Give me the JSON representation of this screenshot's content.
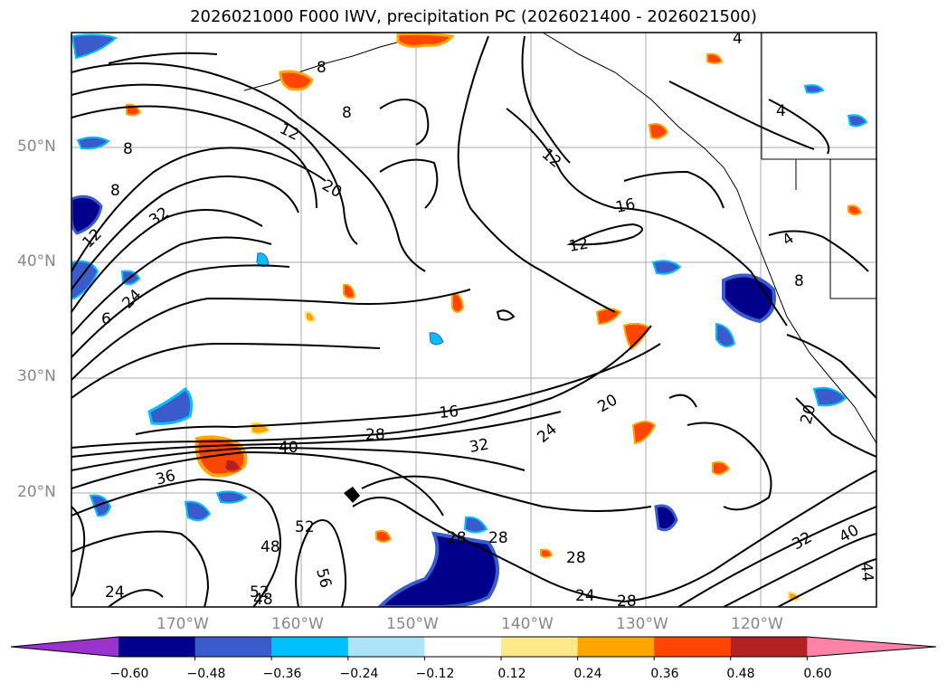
{
  "title": "2026021000 F000 IWV, precipitation PC (2026021400 - 2026021500)",
  "lat_labels": [
    "50°N",
    "40°N",
    "30°N",
    "20°N"
  ],
  "lon_labels": [
    "170°W",
    "160°W",
    "150°W",
    "140°W",
    "130°W",
    "120°W"
  ],
  "contour_labels": [
    "12",
    "8",
    "8",
    "8",
    "12",
    "8",
    "32",
    "20",
    "24",
    "6",
    "12",
    "16",
    "12",
    "4",
    "4",
    "4",
    "8",
    "16",
    "20",
    "28",
    "40",
    "32",
    "24",
    "36",
    "52",
    "48",
    "56",
    "28",
    "28",
    "28",
    "24",
    "28",
    "20",
    "40",
    "52",
    "44",
    "24",
    "48",
    "32"
  ],
  "colorbar": {
    "ticks": [
      "−0.60",
      "−0.48",
      "−0.36",
      "−0.24",
      "−0.12",
      "0.12",
      "0.24",
      "0.36",
      "0.48",
      "0.60"
    ],
    "colors": [
      "#9933cc",
      "#00008b",
      "#3a5bcc",
      "#00bfff",
      "#ade3f7",
      "#ffffff",
      "#ffe98a",
      "#ffa500",
      "#ff4500",
      "#b22222",
      "#ff82ab"
    ]
  }
}
